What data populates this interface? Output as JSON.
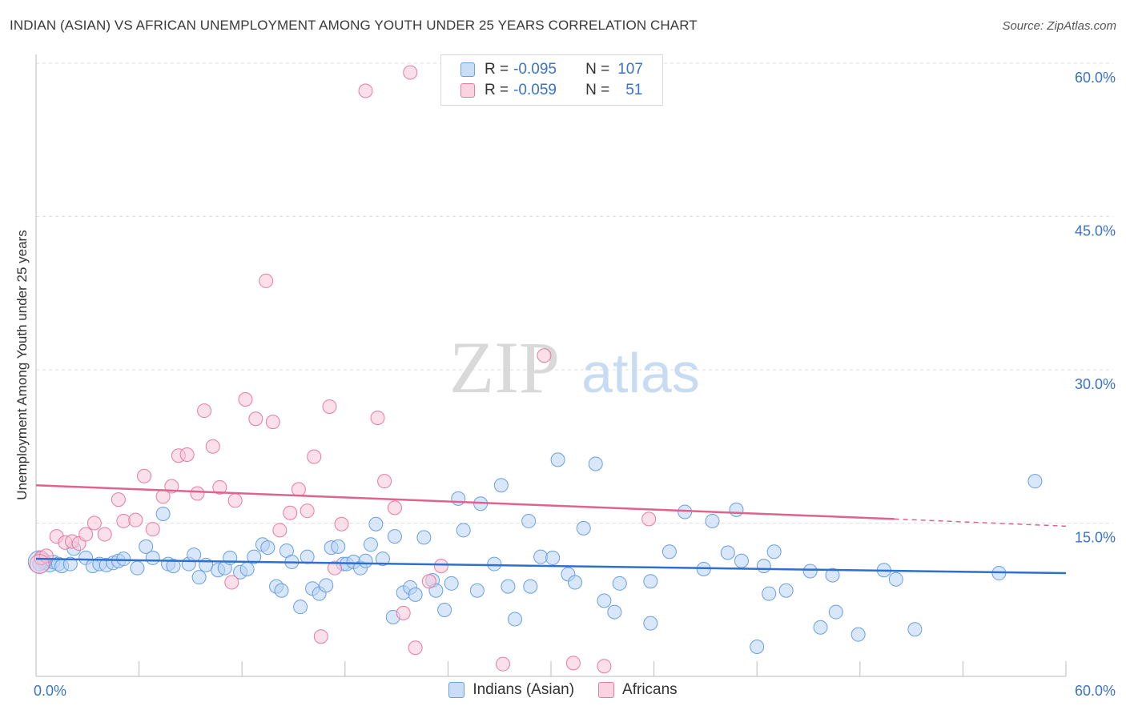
{
  "title": "INDIAN (ASIAN) VS AFRICAN UNEMPLOYMENT AMONG YOUTH UNDER 25 YEARS CORRELATION CHART",
  "source": "Source: ZipAtlas.com",
  "watermark": {
    "zip": "ZIP",
    "atlas": "atlas"
  },
  "legend": {
    "rows": [
      {
        "r_label": "R =",
        "r_value": "-0.095",
        "n_label": "N =",
        "n_value": "107",
        "color": "#9dc3f0"
      },
      {
        "r_label": "R =",
        "r_value": "-0.059",
        "n_label": "N =",
        "n_value": "51",
        "color": "#f5a8c2"
      }
    ]
  },
  "bottom_legend": [
    {
      "label": "Indians (Asian)",
      "color": "#9dc3f0"
    },
    {
      "label": "Africans",
      "color": "#f5a8c2"
    }
  ],
  "chart_data": {
    "type": "scatter",
    "title": "INDIAN (ASIAN) VS AFRICAN UNEMPLOYMENT AMONG YOUTH UNDER 25 YEARS CORRELATION CHART",
    "xlabel": "",
    "ylabel": "Unemployment Among Youth under 25 years",
    "xlim": [
      0,
      60
    ],
    "ylim": [
      0,
      60
    ],
    "x_tick_labels": [
      "0.0%",
      "60.0%"
    ],
    "y_tick_values": [
      15,
      30,
      45,
      60
    ],
    "y_tick_labels": [
      "15.0%",
      "30.0%",
      "45.0%",
      "60.0%"
    ],
    "grid": true,
    "legend_position": "top-center",
    "series": [
      {
        "name": "Indians (Asian)",
        "color": "#6a9fe0",
        "fill": "#b8d4f5",
        "trend": {
          "x": [
            0,
            60
          ],
          "y": [
            11.5,
            10.1
          ]
        },
        "points": [
          [
            0.3,
            11.5
          ],
          [
            0.5,
            11.1
          ],
          [
            0.8,
            10.9
          ],
          [
            1.0,
            11.2
          ],
          [
            1.3,
            11.0
          ],
          [
            1.5,
            10.8
          ],
          [
            2.0,
            11.0
          ],
          [
            2.2,
            12.5
          ],
          [
            2.9,
            11.6
          ],
          [
            3.3,
            10.8
          ],
          [
            3.7,
            11.0
          ],
          [
            4.1,
            10.9
          ],
          [
            4.5,
            11.1
          ],
          [
            4.8,
            11.3
          ],
          [
            5.1,
            11.5
          ],
          [
            5.9,
            10.6
          ],
          [
            6.4,
            12.7
          ],
          [
            6.8,
            11.6
          ],
          [
            7.4,
            15.9
          ],
          [
            7.7,
            11.0
          ],
          [
            8.0,
            10.8
          ],
          [
            8.9,
            11.0
          ],
          [
            9.2,
            11.9
          ],
          [
            9.5,
            9.7
          ],
          [
            9.9,
            10.9
          ],
          [
            10.6,
            10.4
          ],
          [
            11.0,
            10.6
          ],
          [
            11.3,
            11.6
          ],
          [
            11.9,
            10.2
          ],
          [
            12.3,
            10.5
          ],
          [
            12.7,
            11.7
          ],
          [
            13.2,
            12.9
          ],
          [
            13.5,
            12.6
          ],
          [
            14.0,
            8.8
          ],
          [
            14.3,
            8.4
          ],
          [
            14.6,
            12.3
          ],
          [
            14.9,
            11.2
          ],
          [
            15.4,
            6.8
          ],
          [
            15.8,
            11.7
          ],
          [
            16.1,
            8.6
          ],
          [
            16.5,
            8.1
          ],
          [
            16.9,
            8.9
          ],
          [
            17.2,
            12.6
          ],
          [
            17.6,
            12.7
          ],
          [
            17.9,
            11.0
          ],
          [
            18.1,
            11.0
          ],
          [
            18.5,
            11.2
          ],
          [
            18.9,
            10.6
          ],
          [
            19.2,
            11.3
          ],
          [
            19.5,
            12.9
          ],
          [
            19.8,
            14.9
          ],
          [
            20.2,
            11.5
          ],
          [
            20.8,
            5.8
          ],
          [
            20.9,
            13.7
          ],
          [
            21.4,
            8.2
          ],
          [
            21.8,
            8.7
          ],
          [
            22.1,
            8.0
          ],
          [
            22.6,
            13.6
          ],
          [
            23.1,
            9.4
          ],
          [
            23.3,
            8.4
          ],
          [
            23.8,
            6.5
          ],
          [
            24.2,
            9.1
          ],
          [
            24.6,
            17.4
          ],
          [
            24.9,
            14.3
          ],
          [
            25.7,
            8.4
          ],
          [
            25.9,
            16.9
          ],
          [
            26.7,
            11.0
          ],
          [
            27.1,
            18.7
          ],
          [
            27.5,
            8.8
          ],
          [
            27.9,
            5.6
          ],
          [
            28.7,
            15.2
          ],
          [
            28.8,
            8.8
          ],
          [
            29.4,
            11.7
          ],
          [
            30.1,
            11.6
          ],
          [
            30.4,
            21.2
          ],
          [
            31.0,
            10.0
          ],
          [
            31.4,
            9.2
          ],
          [
            31.9,
            14.5
          ],
          [
            32.6,
            20.8
          ],
          [
            33.1,
            7.4
          ],
          [
            33.7,
            6.3
          ],
          [
            34.0,
            9.1
          ],
          [
            35.8,
            9.3
          ],
          [
            35.8,
            5.2
          ],
          [
            36.9,
            12.2
          ],
          [
            37.8,
            16.1
          ],
          [
            38.9,
            10.5
          ],
          [
            39.4,
            15.2
          ],
          [
            40.3,
            12.1
          ],
          [
            40.8,
            16.3
          ],
          [
            41.1,
            11.3
          ],
          [
            42.4,
            10.8
          ],
          [
            42.7,
            8.1
          ],
          [
            43.0,
            12.2
          ],
          [
            43.7,
            8.4
          ],
          [
            45.1,
            10.3
          ],
          [
            45.7,
            4.8
          ],
          [
            46.4,
            9.9
          ],
          [
            46.6,
            6.3
          ],
          [
            47.9,
            4.1
          ],
          [
            49.4,
            10.4
          ],
          [
            50.1,
            9.5
          ],
          [
            51.2,
            4.6
          ],
          [
            56.1,
            10.1
          ],
          [
            58.2,
            19.1
          ],
          [
            42.0,
            2.9
          ],
          [
            0.2,
            11.0
          ]
        ]
      },
      {
        "name": "Africans",
        "color": "#e87aa0",
        "fill": "#f8c6d7",
        "trend": {
          "x": [
            0,
            50
          ],
          "y": [
            18.7,
            15.4
          ]
        },
        "trend_dashed_to": {
          "x": 60,
          "y": 14.7
        },
        "points": [
          [
            0.3,
            11.6
          ],
          [
            0.6,
            11.8
          ],
          [
            1.2,
            13.7
          ],
          [
            1.7,
            13.1
          ],
          [
            2.1,
            13.2
          ],
          [
            2.5,
            13.0
          ],
          [
            2.9,
            13.9
          ],
          [
            3.4,
            15.0
          ],
          [
            4.0,
            13.9
          ],
          [
            4.8,
            17.3
          ],
          [
            5.1,
            15.2
          ],
          [
            5.8,
            15.3
          ],
          [
            6.3,
            19.6
          ],
          [
            6.8,
            14.4
          ],
          [
            7.4,
            17.6
          ],
          [
            7.9,
            18.6
          ],
          [
            8.3,
            21.6
          ],
          [
            8.8,
            21.7
          ],
          [
            9.4,
            17.9
          ],
          [
            9.8,
            26.0
          ],
          [
            10.3,
            22.5
          ],
          [
            10.7,
            18.5
          ],
          [
            11.4,
            9.2
          ],
          [
            11.6,
            17.2
          ],
          [
            12.2,
            27.1
          ],
          [
            12.8,
            25.2
          ],
          [
            13.4,
            38.7
          ],
          [
            13.8,
            24.9
          ],
          [
            14.2,
            14.3
          ],
          [
            14.8,
            16.0
          ],
          [
            15.3,
            18.3
          ],
          [
            15.8,
            16.2
          ],
          [
            16.2,
            21.5
          ],
          [
            16.6,
            3.9
          ],
          [
            17.1,
            26.4
          ],
          [
            17.4,
            10.6
          ],
          [
            17.8,
            14.9
          ],
          [
            19.2,
            57.3
          ],
          [
            19.9,
            25.3
          ],
          [
            20.3,
            19.1
          ],
          [
            20.9,
            16.5
          ],
          [
            21.4,
            6.2
          ],
          [
            21.8,
            59.1
          ],
          [
            22.1,
            2.8
          ],
          [
            22.9,
            9.3
          ],
          [
            23.6,
            10.8
          ],
          [
            27.2,
            1.2
          ],
          [
            29.6,
            31.4
          ],
          [
            31.3,
            1.3
          ],
          [
            33.1,
            1.0
          ],
          [
            35.7,
            15.4
          ]
        ]
      }
    ]
  }
}
